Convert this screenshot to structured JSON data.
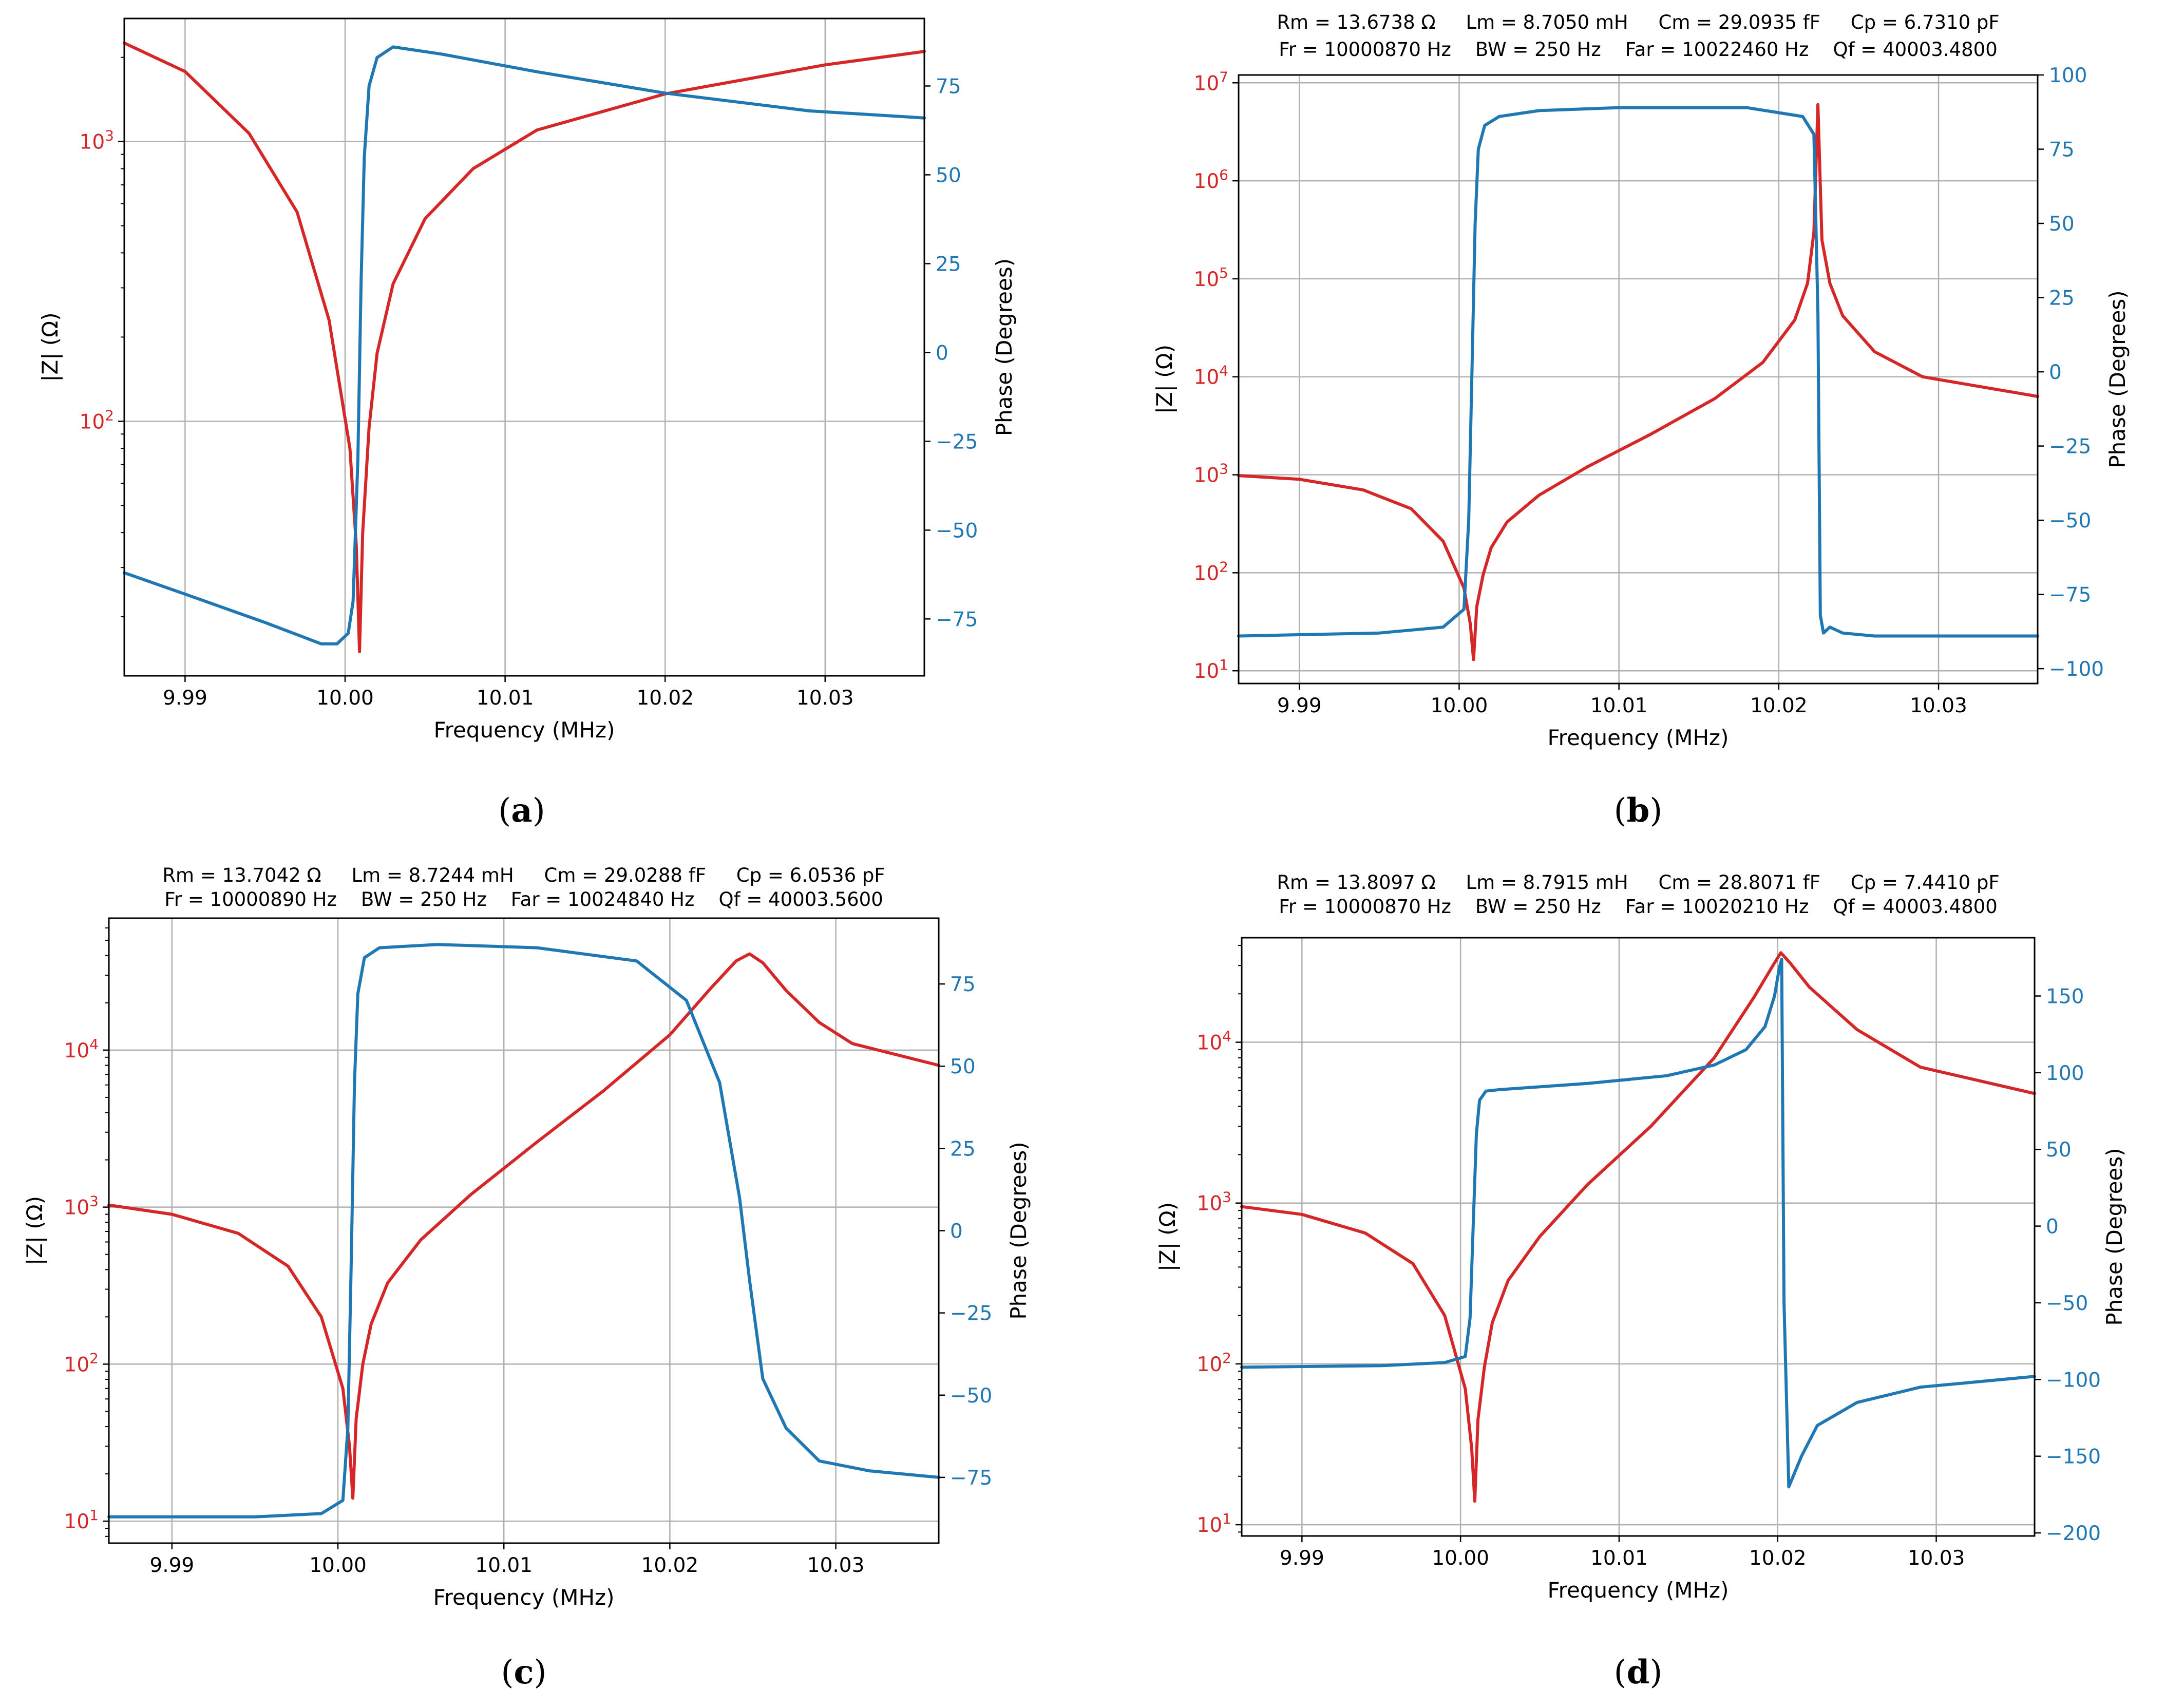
{
  "figure": {
    "xlabel": "Frequency (MHz)",
    "y_left_label": "|Z| (Ω)",
    "y_right_label": "Phase (Degrees)",
    "colors": {
      "impedance": "#d62728",
      "phase": "#1f77b4",
      "grid": "#b0b0b0"
    }
  },
  "panels": [
    {
      "caption_open": "(",
      "caption_letter": "a",
      "caption_close": ")",
      "header": []
    },
    {
      "caption_open": "(",
      "caption_letter": "b",
      "caption_close": ")",
      "header": [
        "Rm = 13.6738 Ω     Lm = 8.7050 mH     Cm = 29.0935 fF     Cp = 6.7310 pF",
        "Fr = 10000870 Hz    BW = 250 Hz    Far = 10022460 Hz    Qf = 40003.4800"
      ]
    },
    {
      "caption_open": "(",
      "caption_letter": "c",
      "caption_close": ")",
      "header": [
        "Rm = 13.7042 Ω     Lm = 8.7244 mH     Cm = 29.0288 fF     Cp = 6.0536 pF",
        "Fr = 10000890 Hz    BW = 250 Hz    Far = 10024840 Hz    Qf = 40003.5600"
      ]
    },
    {
      "caption_open": "(",
      "caption_letter": "d",
      "caption_close": ")",
      "header": [
        "Rm = 13.8097 Ω     Lm = 8.7915 mH     Cm = 28.8071 fF     Cp = 7.4410 pF",
        "Fr = 10000870 Hz    BW = 250 Hz    Far = 10020210 Hz    Qf = 40003.4800"
      ]
    }
  ],
  "chart_data": [
    {
      "panel": "a",
      "type": "line",
      "xlabel": "Frequency (MHz)",
      "ylabel_left": "|Z| (Ω)",
      "ylabel_right": "Phase (Degrees)",
      "xlim": [
        9.9862,
        10.0362
      ],
      "xticks": [
        9.99,
        10.0,
        10.01,
        10.02,
        10.03
      ],
      "xtick_labels": [
        "9.99",
        "10.00",
        "10.01",
        "10.02",
        "10.03"
      ],
      "ylim_left_log10": [
        1.09,
        3.44
      ],
      "left_scale": "log",
      "yticks_left": [
        2,
        3
      ],
      "ytick_labels_left": [
        "10^2",
        "10^3"
      ],
      "minor_ticks_left": true,
      "ylim_right": [
        -91,
        94
      ],
      "yticks_right": [
        -75,
        -50,
        -25,
        0,
        25,
        50,
        75
      ],
      "ytick_labels_right": [
        "−75",
        "−50",
        "−25",
        "0",
        "25",
        "50",
        "75"
      ],
      "series": [
        {
          "name": "|Z|",
          "axis": "left",
          "color": "#d62728",
          "x": [
            9.9862,
            9.99,
            9.994,
            9.997,
            9.999,
            10.0003,
            10.0007,
            10.0009,
            10.0011,
            10.0015,
            10.002,
            10.003,
            10.005,
            10.008,
            10.012,
            10.02,
            10.03,
            10.0362
          ],
          "y": [
            2250,
            1780,
            1070,
            560,
            230,
            80,
            36,
            15,
            40,
            95,
            175,
            310,
            530,
            800,
            1100,
            1480,
            1880,
            2100
          ]
        },
        {
          "name": "Phase",
          "axis": "right",
          "color": "#1f77b4",
          "x": [
            9.9862,
            9.99,
            9.995,
            9.9985,
            9.9995,
            10.0002,
            10.0005,
            10.0008,
            10.001,
            10.0012,
            10.0015,
            10.002,
            10.003,
            10.006,
            10.012,
            10.02,
            10.029,
            10.0362
          ],
          "y": [
            -62,
            -68,
            -76,
            -82,
            -82,
            -79,
            -70,
            -30,
            20,
            55,
            75,
            83,
            86,
            84,
            79,
            73,
            68,
            66
          ]
        }
      ]
    },
    {
      "panel": "b",
      "type": "line",
      "title_lines": [
        "Rm = 13.6738 Ω     Lm = 8.7050 mH     Cm = 29.0935 fF     Cp = 6.7310 pF",
        "Fr = 10000870 Hz    BW = 250 Hz    Far = 10022460 Hz    Qf = 40003.4800"
      ],
      "xlabel": "Frequency (MHz)",
      "ylabel_left": "|Z| (Ω)",
      "ylabel_right": "Phase (Degrees)",
      "xlim": [
        9.9862,
        10.0362
      ],
      "xticks": [
        9.99,
        10.0,
        10.01,
        10.02,
        10.03
      ],
      "xtick_labels": [
        "9.99",
        "10.00",
        "10.01",
        "10.02",
        "10.03"
      ],
      "ylim_left_log10": [
        0.87,
        7.08
      ],
      "left_scale": "log",
      "yticks_left": [
        1,
        2,
        3,
        4,
        5,
        6,
        7
      ],
      "ytick_labels_left": [
        "10^1",
        "10^2",
        "10^3",
        "10^4",
        "10^5",
        "10^6",
        "10^7"
      ],
      "minor_ticks_left": false,
      "ylim_right": [
        -105,
        100
      ],
      "yticks_right": [
        -100,
        -75,
        -50,
        -25,
        0,
        25,
        50,
        75,
        100
      ],
      "ytick_labels_right": [
        "−100",
        "−75",
        "−50",
        "−25",
        "0",
        "25",
        "50",
        "75",
        "100"
      ],
      "series": [
        {
          "name": "|Z|",
          "axis": "left",
          "color": "#d62728",
          "x": [
            9.9862,
            9.99,
            9.994,
            9.997,
            9.999,
            10.0003,
            10.0007,
            10.0009,
            10.0011,
            10.0015,
            10.002,
            10.003,
            10.005,
            10.008,
            10.012,
            10.016,
            10.019,
            10.021,
            10.0218,
            10.0222,
            10.02245,
            10.0227,
            10.0232,
            10.024,
            10.026,
            10.029,
            10.0362
          ],
          "y": [
            980,
            900,
            700,
            450,
            210,
            70,
            30,
            13,
            45,
            95,
            180,
            330,
            620,
            1200,
            2600,
            6000,
            14000,
            38000,
            90000,
            300000,
            6000000,
            250000,
            90000,
            42000,
            18000,
            10000,
            6300
          ]
        },
        {
          "name": "Phase",
          "axis": "right",
          "color": "#1f77b4",
          "x": [
            9.9862,
            9.995,
            9.999,
            10.0003,
            10.0006,
            10.0008,
            10.001,
            10.0012,
            10.0016,
            10.0025,
            10.005,
            10.01,
            10.018,
            10.0215,
            10.0222,
            10.02245,
            10.0226,
            10.0228,
            10.0232,
            10.024,
            10.026,
            10.0362
          ],
          "y": [
            -89,
            -88,
            -86,
            -80,
            -50,
            0,
            50,
            75,
            83,
            86,
            88,
            89,
            89,
            86,
            80,
            20,
            -82,
            -88,
            -86,
            -88,
            -89,
            -89
          ]
        }
      ]
    },
    {
      "panel": "c",
      "type": "line",
      "title_lines": [
        "Rm = 13.7042 Ω     Lm = 8.7244 mH     Cm = 29.0288 fF     Cp = 6.0536 pF",
        "Fr = 10000890 Hz    BW = 250 Hz    Far = 10024840 Hz    Qf = 40003.5600"
      ],
      "xlabel": "Frequency (MHz)",
      "ylabel_left": "|Z| (Ω)",
      "ylabel_right": "Phase (Degrees)",
      "xlim": [
        9.9862,
        10.0362
      ],
      "xticks": [
        9.99,
        10.0,
        10.01,
        10.02,
        10.03
      ],
      "xtick_labels": [
        "9.99",
        "10.00",
        "10.01",
        "10.02",
        "10.03"
      ],
      "ylim_left_log10": [
        0.86,
        4.84
      ],
      "left_scale": "log",
      "yticks_left": [
        1,
        2,
        3,
        4
      ],
      "ytick_labels_left": [
        "10^1",
        "10^2",
        "10^3",
        "10^4"
      ],
      "minor_ticks_left": true,
      "ylim_right": [
        -95,
        95
      ],
      "yticks_right": [
        -75,
        -50,
        -25,
        0,
        25,
        50,
        75
      ],
      "ytick_labels_right": [
        "−75",
        "−50",
        "−25",
        "0",
        "25",
        "50",
        "75"
      ],
      "series": [
        {
          "name": "|Z|",
          "axis": "left",
          "color": "#d62728",
          "x": [
            9.9862,
            9.99,
            9.994,
            9.997,
            9.999,
            10.0003,
            10.0007,
            10.0009,
            10.0011,
            10.0015,
            10.002,
            10.003,
            10.005,
            10.008,
            10.012,
            10.016,
            10.02,
            10.0225,
            10.024,
            10.0248,
            10.0256,
            10.027,
            10.029,
            10.031,
            10.0362
          ],
          "y": [
            1030,
            900,
            680,
            420,
            200,
            70,
            30,
            14,
            45,
            100,
            180,
            330,
            620,
            1200,
            2600,
            5500,
            12500,
            25000,
            37000,
            41000,
            36000,
            24000,
            15000,
            11000,
            8000
          ]
        },
        {
          "name": "Phase",
          "axis": "right",
          "color": "#1f77b4",
          "x": [
            9.9862,
            9.995,
            9.999,
            10.0003,
            10.0006,
            10.0008,
            10.001,
            10.0012,
            10.0016,
            10.0025,
            10.006,
            10.012,
            10.018,
            10.021,
            10.023,
            10.0242,
            10.0248,
            10.0256,
            10.027,
            10.029,
            10.032,
            10.0362
          ],
          "y": [
            -87,
            -87,
            -86,
            -82,
            -60,
            -10,
            45,
            72,
            83,
            86,
            87,
            86,
            82,
            70,
            45,
            10,
            -15,
            -45,
            -60,
            -70,
            -73,
            -75
          ]
        }
      ]
    },
    {
      "panel": "d",
      "type": "line",
      "title_lines": [
        "Rm = 13.8097 Ω     Lm = 8.7915 mH     Cm = 28.8071 fF     Cp = 7.4410 pF",
        "Fr = 10000870 Hz    BW = 250 Hz    Far = 10020210 Hz    Qf = 40003.4800"
      ],
      "xlabel": "Frequency (MHz)",
      "ylabel_left": "|Z| (Ω)",
      "ylabel_right": "Phase (Degrees)",
      "xlim": [
        9.9862,
        10.0362
      ],
      "xticks": [
        9.99,
        10.0,
        10.01,
        10.02,
        10.03
      ],
      "xtick_labels": [
        "9.99",
        "10.00",
        "10.01",
        "10.02",
        "10.03"
      ],
      "ylim_left_log10": [
        0.93,
        4.65
      ],
      "left_scale": "log",
      "yticks_left": [
        1,
        2,
        3,
        4
      ],
      "ytick_labels_left": [
        "10^1",
        "10^2",
        "10^3",
        "10^4"
      ],
      "minor_ticks_left": true,
      "ylim_right": [
        -202,
        188
      ],
      "yticks_right": [
        -200,
        -150,
        -100,
        -50,
        0,
        50,
        100,
        150
      ],
      "ytick_labels_right": [
        "−200",
        "−150",
        "−100",
        "−50",
        "0",
        "50",
        "100",
        "150"
      ],
      "series": [
        {
          "name": "|Z|",
          "axis": "left",
          "color": "#d62728",
          "x": [
            9.9862,
            9.99,
            9.994,
            9.997,
            9.999,
            10.0003,
            10.0007,
            10.0009,
            10.0011,
            10.0015,
            10.002,
            10.003,
            10.005,
            10.008,
            10.012,
            10.016,
            10.0185,
            10.0197,
            10.0202,
            10.0208,
            10.022,
            10.025,
            10.029,
            10.0362
          ],
          "y": [
            950,
            850,
            650,
            420,
            200,
            70,
            30,
            14,
            45,
            95,
            180,
            330,
            620,
            1300,
            3000,
            8000,
            19000,
            30000,
            36000,
            31000,
            22000,
            12000,
            7000,
            4800
          ]
        },
        {
          "name": "Phase",
          "axis": "right",
          "color": "#1f77b4",
          "x": [
            9.9862,
            9.995,
            9.999,
            10.0003,
            10.0006,
            10.0008,
            10.001,
            10.0012,
            10.0016,
            10.0025,
            10.008,
            10.013,
            10.016,
            10.018,
            10.0192,
            10.0198,
            10.0201,
            10.02025,
            10.0204,
            10.0207,
            10.0215,
            10.0225,
            10.025,
            10.029,
            10.0362
          ],
          "y": [
            -92,
            -91,
            -89,
            -85,
            -60,
            0,
            60,
            82,
            88,
            89,
            93,
            98,
            105,
            115,
            130,
            150,
            168,
            174,
            -50,
            -170,
            -150,
            -130,
            -115,
            -105,
            -98
          ]
        }
      ]
    }
  ]
}
